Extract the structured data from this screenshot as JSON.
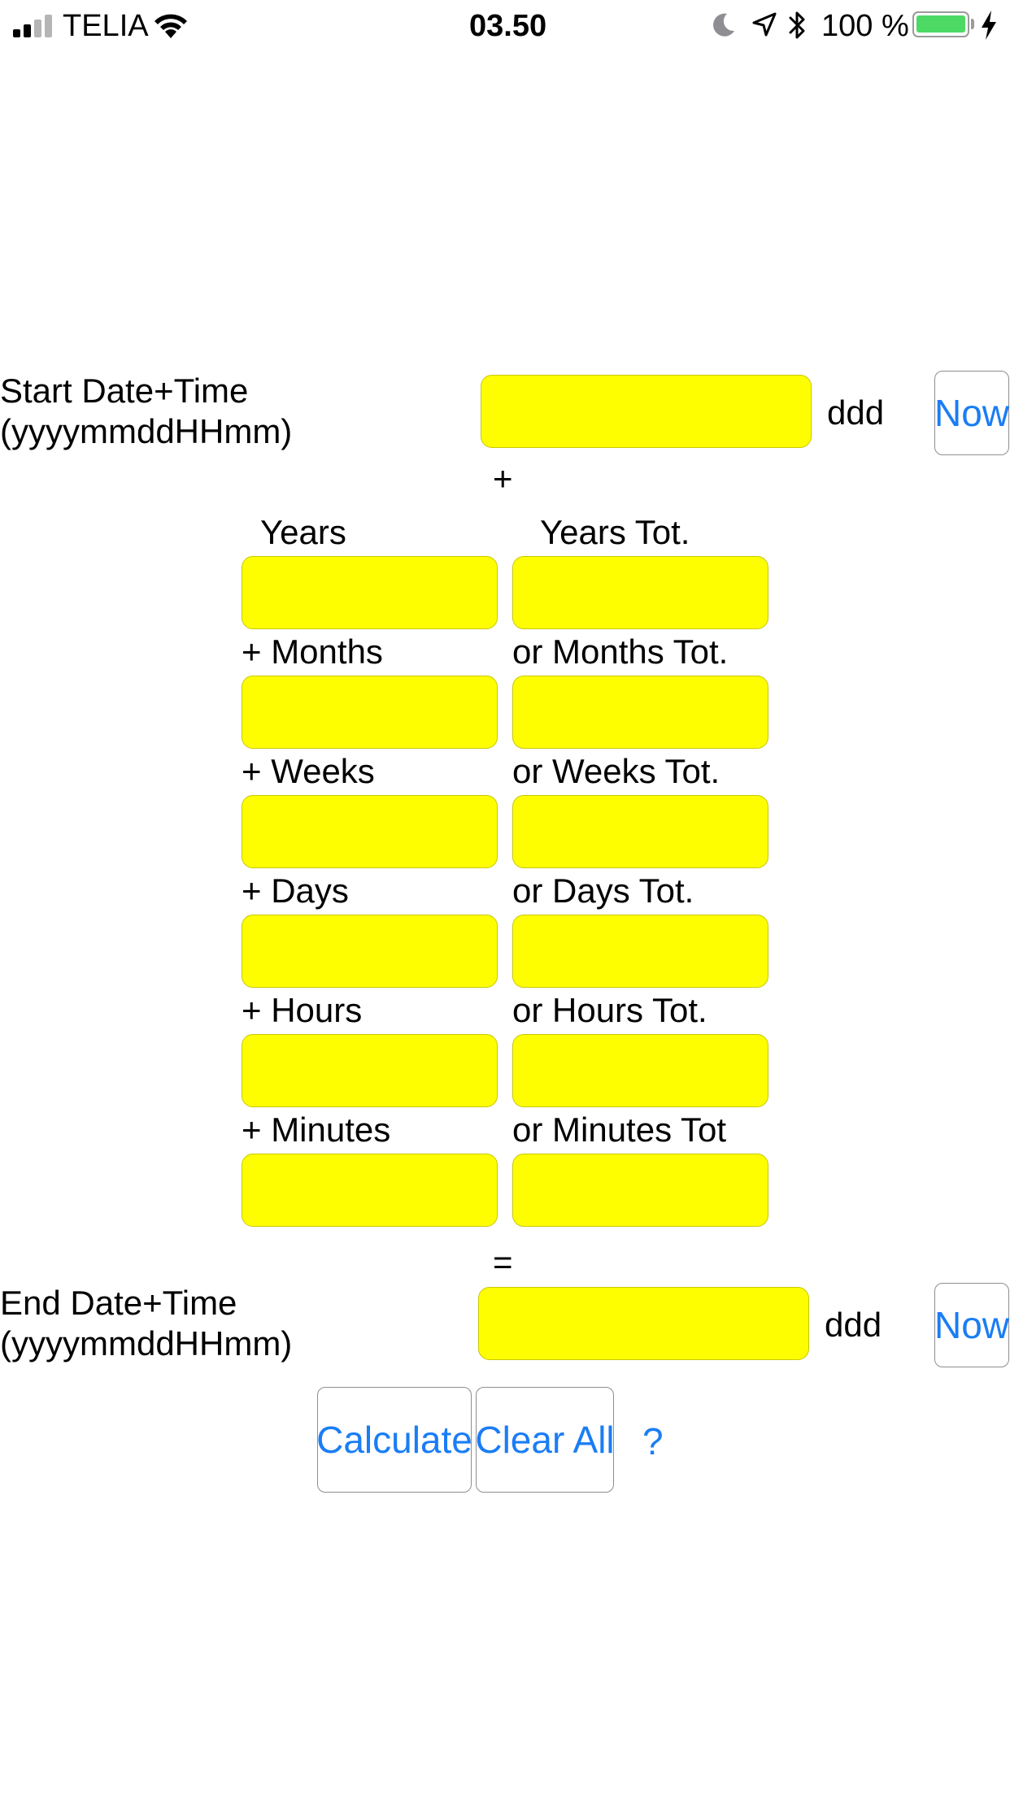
{
  "status_bar": {
    "carrier": "TELIA",
    "time": "03.50",
    "battery_percent": "100 %",
    "battery_level": 1.0,
    "signal_bars_filled": 2,
    "signal_bars_total": 4,
    "battery_color": "#4cd964"
  },
  "start": {
    "label_line1": "Start Date+Time",
    "label_line2": "(yyyymmddHHmm)",
    "value": "",
    "weekday": "ddd",
    "now_label": "Now"
  },
  "plus_sign": "+",
  "equals_sign": "=",
  "increments": {
    "rows": [
      {
        "left_label": "Years",
        "right_label": "Years Tot."
      },
      {
        "left_label": "+ Months",
        "right_label": "or Months Tot."
      },
      {
        "left_label": "+ Weeks",
        "right_label": "or Weeks Tot."
      },
      {
        "left_label": "+ Days",
        "right_label": "or Days Tot."
      },
      {
        "left_label": "+ Hours",
        "right_label": "or Hours Tot."
      },
      {
        "left_label": "+ Minutes",
        "right_label": "or Minutes Tot"
      }
    ]
  },
  "end": {
    "label_line1": "End Date+Time",
    "label_line2": "(yyyymmddHHmm)",
    "value": "",
    "weekday": "ddd",
    "now_label": "Now"
  },
  "actions": {
    "calculate_label": "Calculate",
    "clear_label": "Clear All",
    "help_label": "?"
  },
  "colors": {
    "field_fill": "#fefe00",
    "accent": "#1a7df5"
  }
}
